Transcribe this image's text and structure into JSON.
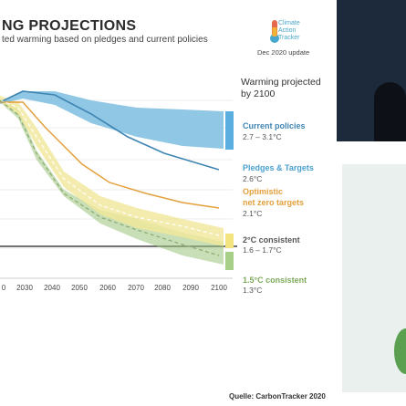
{
  "header": {
    "title": "NG PROJECTIONS",
    "subtitle": "ted warming based on pledges and current policies",
    "logo_text": "Climate\nAction\nTracker",
    "logo_update": "Dec 2020 update"
  },
  "source": "Quelle: CarbonTracker 2020",
  "colors": {
    "current_policies": "#3f85b3",
    "pledges": "#3fa8d6",
    "optimistic": "#e3a03c",
    "two_c": "#f1e79a",
    "one_five_c": "#9ac27a",
    "baseline": "#222222"
  },
  "chart_data": {
    "type": "area",
    "x_tick_labels": [
      "0",
      "2030",
      "2040",
      "2050",
      "2060",
      "2070",
      "2080",
      "2090",
      "2100"
    ],
    "x": [
      2030,
      2040,
      2050,
      2060,
      2070,
      2080,
      2090,
      2100
    ],
    "legend_title": "Warming projected by 2100",
    "series": [
      {
        "name": "Current policies",
        "label": "2.7 – 3.1°C",
        "color": "current_policies"
      },
      {
        "name": "Pledges & Targets",
        "label": "2.6°C",
        "color": "pledges"
      },
      {
        "name": "Optimistic net zero targets",
        "label": "2.1°C",
        "color": "optimistic"
      },
      {
        "name": "2°C consistent",
        "label": "1.6 – 1.7°C",
        "color": "two_c"
      },
      {
        "name": "1.5°C consistent",
        "label": "1.3°C",
        "color": "one_five_c"
      }
    ]
  },
  "icons": {
    "logo": "thermometer-logo-icon"
  }
}
